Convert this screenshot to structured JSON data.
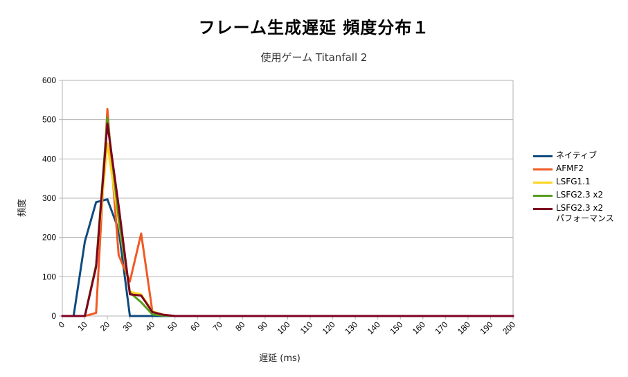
{
  "chart_data": {
    "type": "line",
    "title": "フレーム生成遅延 頻度分布１",
    "subtitle": "使用ゲーム  Titanfall 2",
    "xlabel": "遅延 (ms)",
    "ylabel": "頻度",
    "xlim": [
      0,
      200
    ],
    "ylim": [
      0,
      600
    ],
    "xticks": [
      "0",
      "10",
      "20",
      "30",
      "40",
      "50",
      "60",
      "70",
      "80",
      "90",
      "100",
      "110",
      "120",
      "130",
      "140",
      "150",
      "160",
      "170",
      "180",
      "190",
      "200"
    ],
    "yticks": [
      "0",
      "100",
      "200",
      "300",
      "400",
      "500",
      "600"
    ],
    "grid": true,
    "legend_position": "right",
    "series": [
      {
        "name": "ネイティブ",
        "color": "#0e4a7e",
        "x": [
          0,
          5,
          10,
          15,
          20,
          25,
          30,
          35,
          40,
          45,
          200
        ],
        "y": [
          0,
          0,
          190,
          290,
          297,
          220,
          0,
          0,
          0,
          0,
          0
        ]
      },
      {
        "name": "AFMF2",
        "color": "#f05a22",
        "x": [
          0,
          10,
          15,
          20,
          25,
          30,
          35,
          40,
          45,
          50,
          200
        ],
        "y": [
          0,
          0,
          8,
          527,
          155,
          88,
          210,
          10,
          3,
          0,
          0
        ]
      },
      {
        "name": "LSFG1.1",
        "color": "#ffd320",
        "x": [
          0,
          10,
          15,
          20,
          25,
          30,
          35,
          40,
          45,
          50,
          200
        ],
        "y": [
          0,
          0,
          130,
          440,
          240,
          62,
          55,
          12,
          3,
          0,
          0
        ]
      },
      {
        "name": "LSFG2.3 x2",
        "color": "#579d1c",
        "x": [
          0,
          10,
          15,
          20,
          25,
          30,
          35,
          40,
          45,
          50,
          200
        ],
        "y": [
          0,
          0,
          130,
          505,
          250,
          60,
          35,
          4,
          1,
          0,
          0
        ]
      },
      {
        "name": "LSFG2.3 x2\nパフォーマンス",
        "color": "#7e0021",
        "x": [
          0,
          10,
          15,
          20,
          25,
          30,
          35,
          40,
          45,
          50,
          200
        ],
        "y": [
          0,
          0,
          125,
          490,
          280,
          55,
          52,
          10,
          3,
          0,
          0
        ]
      }
    ]
  }
}
